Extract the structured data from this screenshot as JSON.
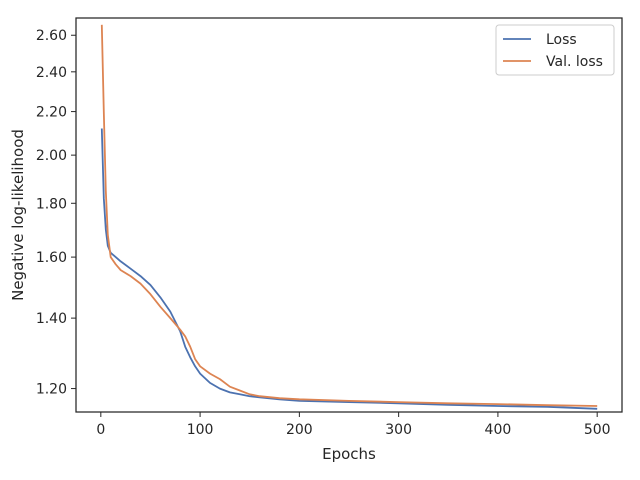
{
  "chart_data": {
    "type": "line",
    "xlabel": "Epochs",
    "ylabel": "Negative log-likelihood",
    "xlim": [
      -25,
      525
    ],
    "ylim": [
      1.14,
      2.7
    ],
    "y_scale": "log",
    "xticks": [
      0,
      100,
      200,
      300,
      400,
      500
    ],
    "xtick_labels": [
      "0",
      "100",
      "200",
      "300",
      "400",
      "500"
    ],
    "yticks": [
      1.2,
      1.4,
      1.6,
      1.8,
      2.0,
      2.2,
      2.4,
      2.6
    ],
    "ytick_labels": [
      "1.20",
      "1.40",
      "1.60",
      "1.80",
      "2.00",
      "2.20",
      "2.40",
      "2.60"
    ],
    "grid": false,
    "legend_position": "top-right",
    "series": [
      {
        "name": "Loss",
        "color": "#4c72b0",
        "x": [
          1,
          3,
          5,
          7,
          10,
          15,
          20,
          30,
          40,
          50,
          60,
          70,
          80,
          85,
          90,
          95,
          100,
          110,
          120,
          130,
          140,
          150,
          160,
          180,
          200,
          250,
          300,
          350,
          400,
          450,
          500
        ],
        "y": [
          2.12,
          1.82,
          1.7,
          1.64,
          1.615,
          1.6,
          1.585,
          1.56,
          1.535,
          1.505,
          1.465,
          1.42,
          1.36,
          1.315,
          1.285,
          1.26,
          1.24,
          1.215,
          1.2,
          1.19,
          1.185,
          1.18,
          1.177,
          1.172,
          1.168,
          1.165,
          1.162,
          1.158,
          1.155,
          1.153,
          1.148
        ]
      },
      {
        "name": "Val. loss",
        "color": "#dd8452",
        "x": [
          1,
          3,
          5,
          7,
          10,
          15,
          20,
          30,
          40,
          50,
          60,
          70,
          80,
          85,
          90,
          95,
          100,
          110,
          120,
          130,
          140,
          150,
          160,
          180,
          200,
          250,
          300,
          350,
          400,
          450,
          500
        ],
        "y": [
          2.66,
          2.2,
          1.85,
          1.68,
          1.6,
          1.575,
          1.555,
          1.535,
          1.51,
          1.475,
          1.435,
          1.4,
          1.365,
          1.345,
          1.315,
          1.28,
          1.26,
          1.24,
          1.225,
          1.205,
          1.195,
          1.185,
          1.18,
          1.175,
          1.172,
          1.168,
          1.165,
          1.162,
          1.16,
          1.157,
          1.155
        ]
      }
    ]
  }
}
